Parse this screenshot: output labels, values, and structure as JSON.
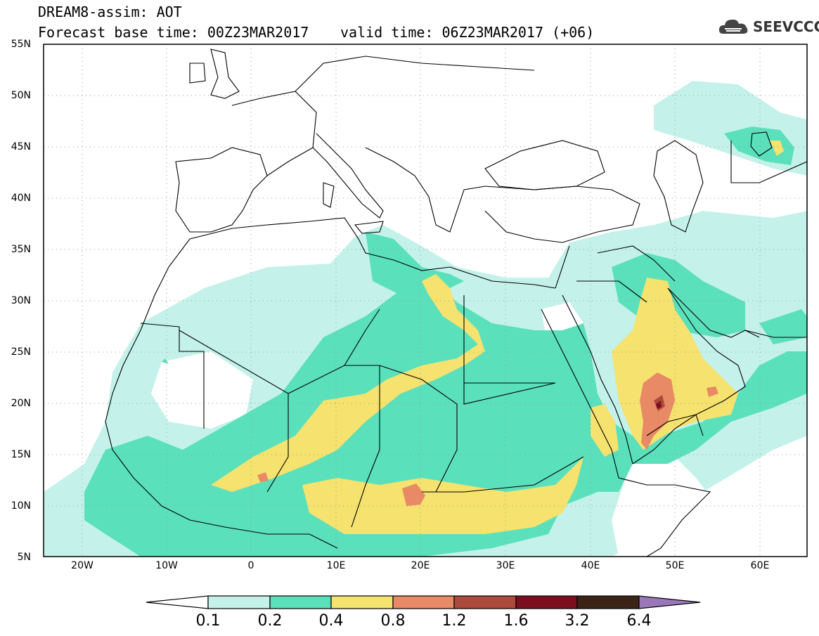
{
  "title": {
    "line1": "DREAM8-assim: AOT",
    "line2a": "Forecast base time: 00Z23MAR2017",
    "line2b": "valid time: 06Z23MAR2017 (+06)"
  },
  "logo": {
    "text": "SEEVCCC",
    "icon": "cloud-icon"
  },
  "map": {
    "lon_range": [
      -25,
      65
    ],
    "lat_range": [
      5,
      55
    ],
    "lat_ticks": [
      "55N",
      "50N",
      "45N",
      "40N",
      "35N",
      "30N",
      "25N",
      "20N",
      "15N",
      "10N",
      "5N"
    ],
    "lon_ticks": [
      "20W",
      "10W",
      "0",
      "10E",
      "20E",
      "30E",
      "40E",
      "50E",
      "60E"
    ],
    "grid": "dotted"
  },
  "colorbar": {
    "levels": [
      "0.1",
      "0.2",
      "0.4",
      "0.8",
      "1.2",
      "1.6",
      "3.2",
      "6.4"
    ],
    "colors": [
      "#c4f2ea",
      "#5be0bc",
      "#f6e26e",
      "#e88a65",
      "#ab4a3d",
      "#7c0e1e",
      "#3b2415",
      "#9a77b8"
    ],
    "under_color": "#ffffff"
  }
}
